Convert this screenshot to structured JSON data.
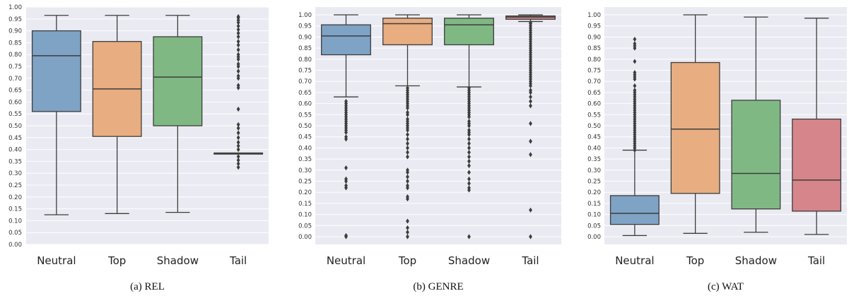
{
  "chart_data": [
    {
      "type": "boxplot",
      "caption": "(a) REL",
      "categories": [
        "Neutral",
        "Top",
        "Shadow",
        "Tail"
      ],
      "ylim": [
        0.0,
        1.0
      ],
      "yticks": [
        0.0,
        0.05,
        0.1,
        0.15,
        0.2,
        0.25,
        0.3,
        0.35,
        0.4,
        0.45,
        0.5,
        0.55,
        0.6,
        0.65,
        0.7,
        0.75,
        0.8,
        0.85,
        0.9,
        0.95,
        1.0
      ],
      "grid": true,
      "boxes": [
        {
          "category": "Neutral",
          "whisker_low": 0.125,
          "q1": 0.56,
          "median": 0.795,
          "q3": 0.9,
          "whisker_high": 0.965,
          "outliers": []
        },
        {
          "category": "Top",
          "whisker_low": 0.13,
          "q1": 0.455,
          "median": 0.655,
          "q3": 0.855,
          "whisker_high": 0.965,
          "outliers": []
        },
        {
          "category": "Shadow",
          "whisker_low": 0.135,
          "q1": 0.5,
          "median": 0.705,
          "q3": 0.875,
          "whisker_high": 0.965,
          "outliers": []
        },
        {
          "category": "Tail",
          "whisker_low": 0.385,
          "q1": 0.385,
          "median": 0.385,
          "q3": 0.385,
          "whisker_high": 0.385,
          "outliers": [
            0.325,
            0.34,
            0.355,
            0.37,
            0.4,
            0.415,
            0.43,
            0.45,
            0.47,
            0.49,
            0.505,
            0.57,
            0.66,
            0.67,
            0.7,
            0.71,
            0.73,
            0.75,
            0.76,
            0.78,
            0.79,
            0.8,
            0.82,
            0.84,
            0.855,
            0.875,
            0.89,
            0.905,
            0.92,
            0.935,
            0.945,
            0.955,
            0.96
          ]
        }
      ]
    },
    {
      "type": "boxplot",
      "caption": "(b) GENRE",
      "categories": [
        "Neutral",
        "Top",
        "Shadow",
        "Tail"
      ],
      "ylim": [
        0.0,
        1.0
      ],
      "yticks": [
        0.0,
        0.05,
        0.1,
        0.15,
        0.2,
        0.25,
        0.3,
        0.35,
        0.4,
        0.45,
        0.5,
        0.55,
        0.6,
        0.65,
        0.7,
        0.75,
        0.8,
        0.85,
        0.9,
        0.95,
        1.0
      ],
      "grid": true,
      "boxes": [
        {
          "category": "Neutral",
          "whisker_low": 0.63,
          "q1": 0.82,
          "median": 0.905,
          "q3": 0.955,
          "whisker_high": 1.0,
          "outliers": [
            0.0,
            0.005,
            0.22,
            0.23,
            0.25,
            0.26,
            0.31,
            0.44,
            0.45,
            0.47,
            0.48,
            0.49,
            0.5,
            0.51,
            0.52,
            0.53,
            0.54,
            0.55,
            0.56,
            0.57,
            0.58,
            0.59,
            0.6,
            0.61
          ]
        },
        {
          "category": "Top",
          "whisker_low": 0.68,
          "q1": 0.865,
          "median": 0.96,
          "q3": 0.985,
          "whisker_high": 1.0,
          "outliers": [
            0.0,
            0.02,
            0.04,
            0.07,
            0.17,
            0.18,
            0.22,
            0.23,
            0.25,
            0.27,
            0.29,
            0.3,
            0.36,
            0.38,
            0.4,
            0.42,
            0.44,
            0.46,
            0.48,
            0.49,
            0.5,
            0.51,
            0.52,
            0.53,
            0.55,
            0.56,
            0.58,
            0.59,
            0.6,
            0.61,
            0.62,
            0.63,
            0.64,
            0.65,
            0.66,
            0.67
          ]
        },
        {
          "category": "Shadow",
          "whisker_low": 0.675,
          "q1": 0.865,
          "median": 0.955,
          "q3": 0.985,
          "whisker_high": 1.0,
          "outliers": [
            0.0,
            0.21,
            0.22,
            0.24,
            0.26,
            0.29,
            0.32,
            0.34,
            0.36,
            0.38,
            0.4,
            0.42,
            0.44,
            0.46,
            0.47,
            0.48,
            0.5,
            0.51,
            0.52,
            0.54,
            0.55,
            0.56,
            0.57,
            0.58,
            0.59,
            0.6,
            0.61,
            0.62,
            0.63,
            0.64,
            0.65,
            0.66,
            0.67
          ]
        },
        {
          "category": "Tail",
          "whisker_low": 0.97,
          "q1": 0.98,
          "median": 0.99,
          "q3": 0.995,
          "whisker_high": 1.0,
          "outliers": [
            0.0,
            0.12,
            0.37,
            0.43,
            0.51,
            0.59,
            0.61,
            0.63,
            0.65,
            0.66,
            0.68,
            0.69,
            0.7,
            0.71,
            0.72,
            0.73,
            0.74,
            0.75,
            0.76,
            0.77,
            0.78,
            0.79,
            0.8,
            0.81,
            0.82,
            0.83,
            0.84,
            0.85,
            0.86,
            0.87,
            0.88,
            0.89,
            0.9,
            0.91,
            0.92,
            0.93,
            0.94,
            0.95,
            0.96,
            0.965
          ]
        }
      ]
    },
    {
      "type": "boxplot",
      "caption": "(c) WAT",
      "categories": [
        "Neutral",
        "Top",
        "Shadow",
        "Tail"
      ],
      "ylim": [
        0.0,
        1.0
      ],
      "yticks": [
        0.0,
        0.05,
        0.1,
        0.15,
        0.2,
        0.25,
        0.3,
        0.35,
        0.4,
        0.45,
        0.5,
        0.55,
        0.6,
        0.65,
        0.7,
        0.75,
        0.8,
        0.85,
        0.9,
        0.95,
        1.0
      ],
      "grid": true,
      "boxes": [
        {
          "category": "Neutral",
          "whisker_low": 0.005,
          "q1": 0.055,
          "median": 0.105,
          "q3": 0.185,
          "whisker_high": 0.39,
          "outliers": [
            0.39,
            0.4,
            0.41,
            0.42,
            0.43,
            0.44,
            0.45,
            0.46,
            0.47,
            0.48,
            0.49,
            0.5,
            0.51,
            0.52,
            0.53,
            0.54,
            0.55,
            0.56,
            0.57,
            0.58,
            0.59,
            0.6,
            0.61,
            0.62,
            0.63,
            0.64,
            0.65,
            0.66,
            0.68,
            0.71,
            0.72,
            0.73,
            0.74,
            0.79,
            0.85,
            0.86,
            0.87,
            0.89
          ]
        },
        {
          "category": "Top",
          "whisker_low": 0.015,
          "q1": 0.195,
          "median": 0.485,
          "q3": 0.785,
          "whisker_high": 1.0,
          "outliers": []
        },
        {
          "category": "Shadow",
          "whisker_low": 0.02,
          "q1": 0.125,
          "median": 0.285,
          "q3": 0.615,
          "whisker_high": 0.99,
          "outliers": []
        },
        {
          "category": "Tail",
          "whisker_low": 0.01,
          "q1": 0.115,
          "median": 0.255,
          "q3": 0.53,
          "whisker_high": 0.985,
          "outliers": []
        }
      ]
    }
  ],
  "colors": {
    "panel_background": "#eaeaf2",
    "grid": "#ffffff",
    "line": "#3d3d3d",
    "box_fills": [
      "#7ea3c5",
      "#e8ad80",
      "#80b884",
      "#d6868a"
    ]
  }
}
